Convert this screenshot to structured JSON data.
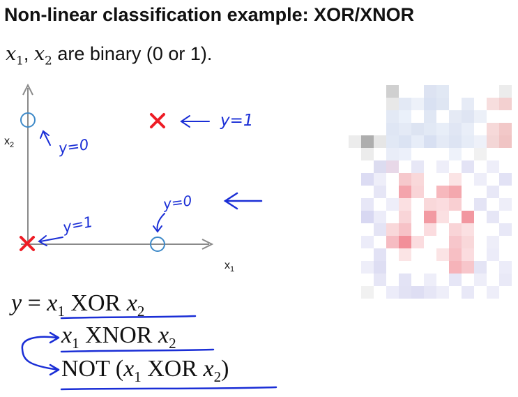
{
  "title": "Non-linear classification example: XOR/XNOR",
  "subtitle": {
    "x1": "x",
    "x1_sub": "1",
    "x2": "x",
    "x2_sub": "2",
    "text": "are binary (0 or 1)."
  },
  "plot": {
    "xlabel": "x",
    "xlabel_sub": "1",
    "ylabel": "x",
    "ylabel_sub": "2",
    "annotations": {
      "top_left": "y=0",
      "top_right": "y=1",
      "bottom_left": "y=1",
      "bottom_right": "y=0"
    },
    "colors": {
      "cross": "#ee1c25",
      "circle": "#3d89c8",
      "axis": "#8a8a8a",
      "ink": "#1a2ed6"
    }
  },
  "equations": {
    "line1": {
      "lhs": "y",
      "eq": "=",
      "a": "x",
      "a_sub": "1",
      "op": "XOR",
      "b": "x",
      "b_sub": "2"
    },
    "line2": {
      "a": "x",
      "a_sub": "1",
      "op": "XNOR",
      "b": "x",
      "b_sub": "2"
    },
    "line3": {
      "not": "NOT",
      "lpar": "(",
      "a": "x",
      "a_sub": "1",
      "op": "XOR",
      "b": "x",
      "b_sub": "2",
      "rpar": ")"
    }
  },
  "mosaic": {
    "cols": 13,
    "rows": 17,
    "cells": [
      [
        3,
        0,
        "#d0d0d0"
      ],
      [
        6,
        0,
        "#dde3f2"
      ],
      [
        7,
        0,
        "#e1e8f4"
      ],
      [
        12,
        0,
        "#ececec"
      ],
      [
        3,
        1,
        "#e8e8e8"
      ],
      [
        4,
        1,
        "#e3e9f5"
      ],
      [
        5,
        1,
        "#edf1f9"
      ],
      [
        6,
        1,
        "#d9e1f2"
      ],
      [
        7,
        1,
        "#dfe6f3"
      ],
      [
        9,
        1,
        "#e6ebf6"
      ],
      [
        11,
        1,
        "#f7dede"
      ],
      [
        12,
        1,
        "#f3d0d0"
      ],
      [
        3,
        2,
        "#e3e9f5"
      ],
      [
        4,
        2,
        "#eaf0fa"
      ],
      [
        6,
        2,
        "#e0e7f4"
      ],
      [
        8,
        2,
        "#e5eaf5"
      ],
      [
        9,
        2,
        "#dfe5f3"
      ],
      [
        10,
        2,
        "#ecf0f8"
      ],
      [
        3,
        3,
        "#dfe6f4"
      ],
      [
        4,
        3,
        "#e4eaf6"
      ],
      [
        5,
        3,
        "#dde4f2"
      ],
      [
        6,
        3,
        "#e2e9f5"
      ],
      [
        7,
        3,
        "#e8eef8"
      ],
      [
        8,
        3,
        "#e0e6f4"
      ],
      [
        9,
        3,
        "#e9eef8"
      ],
      [
        11,
        3,
        "#f6d9d9"
      ],
      [
        12,
        3,
        "#f2c8c8"
      ],
      [
        0,
        4,
        "#ececec"
      ],
      [
        1,
        4,
        "#aeaeae"
      ],
      [
        2,
        4,
        "#e6e6e6"
      ],
      [
        3,
        4,
        "#e1e8f5"
      ],
      [
        4,
        4,
        "#dbe3f3"
      ],
      [
        5,
        4,
        "#e7edf8"
      ],
      [
        6,
        4,
        "#d8e0f2"
      ],
      [
        7,
        4,
        "#e4eaf6"
      ],
      [
        8,
        4,
        "#dde4f3"
      ],
      [
        9,
        4,
        "#e6ecf7"
      ],
      [
        10,
        4,
        "#eef1f9"
      ],
      [
        11,
        4,
        "#f3d6d6"
      ],
      [
        12,
        4,
        "#f0c4c4"
      ],
      [
        1,
        5,
        "#ececec"
      ],
      [
        3,
        5,
        "#e9edf8"
      ],
      [
        4,
        5,
        "#ecf0fa"
      ],
      [
        8,
        5,
        "#eef2fa"
      ],
      [
        10,
        5,
        "#f1f1f1"
      ],
      [
        2,
        6,
        "#dcdcf0"
      ],
      [
        3,
        6,
        "#e8d8e8"
      ],
      [
        5,
        6,
        "#e7e7f6"
      ],
      [
        7,
        6,
        "#eeeef9"
      ],
      [
        9,
        6,
        "#e3e3f5"
      ],
      [
        11,
        6,
        "#eeeef9"
      ],
      [
        1,
        7,
        "#dcdcf3"
      ],
      [
        2,
        7,
        "#eeeef9"
      ],
      [
        4,
        7,
        "#f6c8cc"
      ],
      [
        5,
        7,
        "#f9d8da"
      ],
      [
        8,
        7,
        "#fbe4e5"
      ],
      [
        10,
        7,
        "#eeeef9"
      ],
      [
        12,
        7,
        "#e2e2f5"
      ],
      [
        2,
        8,
        "#e6e6f6"
      ],
      [
        4,
        8,
        "#f4a4ac"
      ],
      [
        5,
        8,
        "#f9d4d7"
      ],
      [
        7,
        8,
        "#f7b8bd"
      ],
      [
        8,
        8,
        "#f4a8ae"
      ],
      [
        11,
        8,
        "#e8e8f7"
      ],
      [
        1,
        9,
        "#e7e7f7"
      ],
      [
        3,
        9,
        "#eeeef9"
      ],
      [
        4,
        9,
        "#fbe0e2"
      ],
      [
        6,
        9,
        "#f9d8da"
      ],
      [
        7,
        9,
        "#fbdcdf"
      ],
      [
        8,
        9,
        "#f9cfd2"
      ],
      [
        10,
        9,
        "#e4e4f5"
      ],
      [
        12,
        9,
        "#eeeef9"
      ],
      [
        1,
        10,
        "#d8d8f2"
      ],
      [
        2,
        10,
        "#ececf9"
      ],
      [
        4,
        10,
        "#f9d5d8"
      ],
      [
        6,
        10,
        "#f29aa2"
      ],
      [
        7,
        10,
        "#fbe0e2"
      ],
      [
        9,
        10,
        "#f297a0"
      ],
      [
        11,
        10,
        "#e6e6f6"
      ],
      [
        2,
        11,
        "#e4e4f5"
      ],
      [
        3,
        11,
        "#f9d8da"
      ],
      [
        4,
        11,
        "#f7c2c7"
      ],
      [
        6,
        11,
        "#fbdcdf"
      ],
      [
        8,
        11,
        "#f9d4d7"
      ],
      [
        9,
        11,
        "#fbe0e2"
      ],
      [
        12,
        11,
        "#e8e8f7"
      ],
      [
        1,
        12,
        "#ececf9"
      ],
      [
        3,
        12,
        "#f6bcc2"
      ],
      [
        4,
        12,
        "#f28f99"
      ],
      [
        5,
        12,
        "#fbdcdf"
      ],
      [
        8,
        12,
        "#f7c6cb"
      ],
      [
        9,
        12,
        "#f9d8da"
      ],
      [
        11,
        12,
        "#eeeef9"
      ],
      [
        2,
        13,
        "#e2e2f5"
      ],
      [
        4,
        13,
        "#fbe4e5"
      ],
      [
        7,
        13,
        "#fbe4e5"
      ],
      [
        8,
        13,
        "#f7bfc4"
      ],
      [
        9,
        13,
        "#fbdcdf"
      ],
      [
        11,
        13,
        "#ececf9"
      ],
      [
        1,
        14,
        "#eeeef9"
      ],
      [
        2,
        14,
        "#dedef3"
      ],
      [
        8,
        14,
        "#f6b3b9"
      ],
      [
        9,
        14,
        "#f7c6cb"
      ],
      [
        10,
        14,
        "#e4e4f5"
      ],
      [
        12,
        14,
        "#ececf9"
      ],
      [
        2,
        15,
        "#e6e6f6"
      ],
      [
        4,
        15,
        "#e3e3f5"
      ],
      [
        6,
        15,
        "#eeeef9"
      ],
      [
        8,
        15,
        "#e6e6f6"
      ],
      [
        10,
        15,
        "#eeeef9"
      ],
      [
        12,
        15,
        "#e9e9f7"
      ],
      [
        1,
        16,
        "#f1f1f1"
      ],
      [
        3,
        16,
        "#ececf9"
      ],
      [
        4,
        16,
        "#e2e2f4"
      ],
      [
        5,
        16,
        "#dedef3"
      ],
      [
        6,
        16,
        "#e6e6f6"
      ],
      [
        7,
        16,
        "#eeeef9"
      ],
      [
        9,
        16,
        "#e8e8f7"
      ],
      [
        11,
        16,
        "#eeeef9"
      ]
    ]
  }
}
